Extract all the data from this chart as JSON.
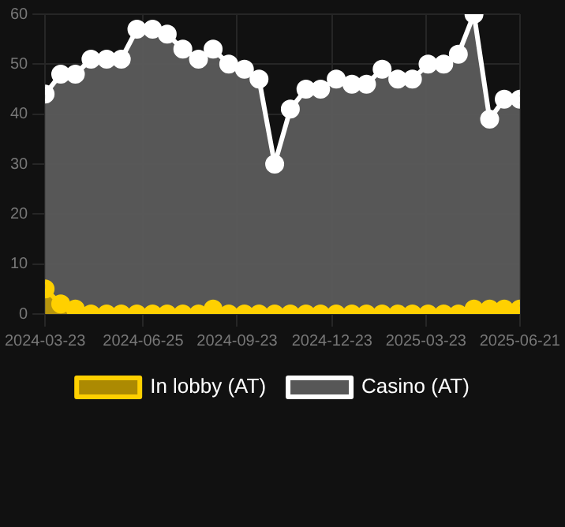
{
  "chart_data": {
    "type": "area",
    "x": [
      "2024-03-23",
      "2024-04-07",
      "2024-04-21",
      "2024-05-06",
      "2024-05-21",
      "2024-06-04",
      "2024-06-19",
      "2024-07-04",
      "2024-07-18",
      "2024-08-02",
      "2024-08-17",
      "2024-08-31",
      "2024-09-15",
      "2024-09-30",
      "2024-10-14",
      "2024-10-29",
      "2024-11-13",
      "2024-11-28",
      "2024-12-12",
      "2024-12-27",
      "2025-01-11",
      "2025-01-25",
      "2025-02-09",
      "2025-02-24",
      "2025-03-10",
      "2025-03-25",
      "2025-04-09",
      "2025-04-23",
      "2025-05-08",
      "2025-05-23",
      "2025-06-06",
      "2025-06-21"
    ],
    "series": [
      {
        "name": "In lobby (AT)",
        "color": "#ffd000",
        "values": [
          5,
          2,
          1,
          0,
          0,
          0,
          0,
          0,
          0,
          0,
          0,
          1,
          0,
          0,
          0,
          0,
          0,
          0,
          0,
          0,
          0,
          0,
          0,
          0,
          0,
          0,
          0,
          0,
          1,
          1,
          1,
          1
        ]
      },
      {
        "name": "Casino (AT)",
        "color": "#ffffff",
        "values": [
          44,
          48,
          48,
          51,
          51,
          51,
          57,
          57,
          56,
          53,
          51,
          53,
          50,
          49,
          47,
          30,
          41,
          45,
          45,
          47,
          46,
          46,
          49,
          47,
          47,
          50,
          50,
          52,
          60,
          39,
          43,
          43
        ]
      }
    ],
    "xlim": [
      "2024-03-23",
      "2025-06-21"
    ],
    "xticks": [
      "2024-03-23",
      "2024-06-25",
      "2024-09-23",
      "2024-12-23",
      "2025-03-23",
      "2025-06-21"
    ],
    "ylim": [
      0,
      60
    ],
    "yticks": [
      0,
      10,
      20,
      30,
      40,
      50,
      60
    ],
    "grid": true,
    "legend": "bottom",
    "marker": "circle"
  }
}
